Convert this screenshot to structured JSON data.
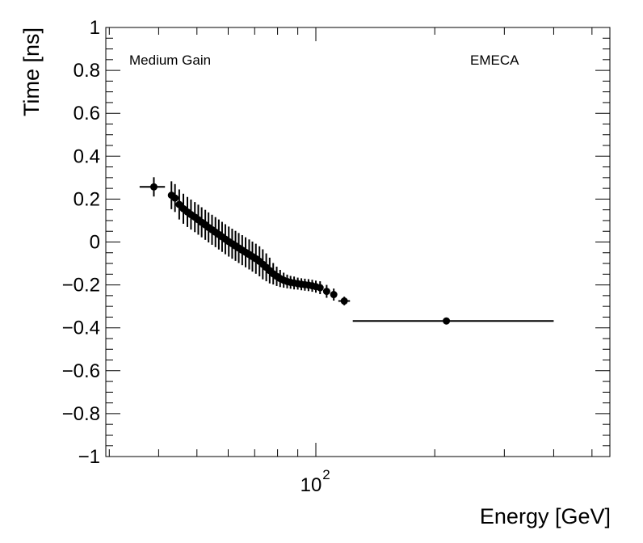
{
  "chart_data": {
    "type": "scatter",
    "xlabel": "Energy [GeV]",
    "ylabel": "Time [ns]",
    "x_scale": "log",
    "xlim": [
      29.4,
      555
    ],
    "ylim": [
      -1,
      1
    ],
    "grid": false,
    "legend": "none",
    "x_tick_labels": [
      {
        "value": 100,
        "base": "10",
        "exp": "2"
      }
    ],
    "y_tick_labels": [
      "−1",
      "−0.8",
      "−0.6",
      "−0.4",
      "−0.2",
      "0",
      "0.2",
      "0.4",
      "0.6",
      "0.8",
      "1"
    ],
    "y_tick_values": [
      -1,
      -0.8,
      -0.6,
      -0.4,
      -0.2,
      0,
      0.2,
      0.4,
      0.6,
      0.8,
      1
    ],
    "annotations": {
      "left": "Medium Gain",
      "right": "EMECA"
    },
    "points": [
      {
        "x": 38.9,
        "y": 0.257,
        "xlo": 35.8,
        "xhi": 41.5,
        "yerr": 0.045
      },
      {
        "x": 43.1,
        "y": 0.218,
        "yerr": 0.065
      },
      {
        "x": 44.0,
        "y": 0.205,
        "yerr": 0.065
      },
      {
        "x": 45.1,
        "y": 0.175,
        "yerr": 0.07
      },
      {
        "x": 46.2,
        "y": 0.155,
        "yerr": 0.07
      },
      {
        "x": 47.3,
        "y": 0.14,
        "yerr": 0.07
      },
      {
        "x": 48.3,
        "y": 0.128,
        "yerr": 0.07
      },
      {
        "x": 49.4,
        "y": 0.116,
        "yerr": 0.07
      },
      {
        "x": 50.4,
        "y": 0.104,
        "yerr": 0.07
      },
      {
        "x": 51.4,
        "y": 0.092,
        "yerr": 0.07
      },
      {
        "x": 52.5,
        "y": 0.08,
        "yerr": 0.07
      },
      {
        "x": 53.5,
        "y": 0.068,
        "yerr": 0.07
      },
      {
        "x": 54.6,
        "y": 0.057,
        "yerr": 0.07
      },
      {
        "x": 55.7,
        "y": 0.046,
        "yerr": 0.07
      },
      {
        "x": 56.8,
        "y": 0.035,
        "yerr": 0.07
      },
      {
        "x": 57.9,
        "y": 0.024,
        "yerr": 0.07
      },
      {
        "x": 59.0,
        "y": 0.013,
        "yerr": 0.07
      },
      {
        "x": 60.2,
        "y": 0.002,
        "yerr": 0.07
      },
      {
        "x": 61.4,
        "y": -0.008,
        "yerr": 0.07
      },
      {
        "x": 62.6,
        "y": -0.018,
        "yerr": 0.07
      },
      {
        "x": 63.8,
        "y": -0.028,
        "yerr": 0.07
      },
      {
        "x": 65.1,
        "y": -0.038,
        "yerr": 0.07
      },
      {
        "x": 66.4,
        "y": -0.048,
        "yerr": 0.07
      },
      {
        "x": 67.8,
        "y": -0.058,
        "yerr": 0.07
      },
      {
        "x": 69.1,
        "y": -0.068,
        "yerr": 0.07
      },
      {
        "x": 70.5,
        "y": -0.078,
        "yerr": 0.07
      },
      {
        "x": 72.0,
        "y": -0.09,
        "yerr": 0.07
      },
      {
        "x": 73.4,
        "y": -0.104,
        "yerr": 0.07
      },
      {
        "x": 74.9,
        "y": -0.118,
        "yerr": 0.065
      },
      {
        "x": 76.4,
        "y": -0.133,
        "yerr": 0.06
      },
      {
        "x": 78.0,
        "y": -0.148,
        "yerr": 0.05
      },
      {
        "x": 79.6,
        "y": -0.16,
        "yerr": 0.045
      },
      {
        "x": 81.2,
        "y": -0.17,
        "yerr": 0.04
      },
      {
        "x": 82.9,
        "y": -0.178,
        "yerr": 0.035
      },
      {
        "x": 84.6,
        "y": -0.184,
        "yerr": 0.032
      },
      {
        "x": 86.3,
        "y": -0.188,
        "yerr": 0.03
      },
      {
        "x": 88.1,
        "y": -0.191,
        "yerr": 0.03
      },
      {
        "x": 90.0,
        "y": -0.194,
        "yerr": 0.028
      },
      {
        "x": 91.9,
        "y": -0.197,
        "yerr": 0.028
      },
      {
        "x": 93.8,
        "y": -0.199,
        "yerr": 0.028
      },
      {
        "x": 95.8,
        "y": -0.201,
        "yerr": 0.028
      },
      {
        "x": 97.9,
        "y": -0.204,
        "yerr": 0.028
      },
      {
        "x": 100.0,
        "y": -0.208,
        "yerr": 0.028
      },
      {
        "x": 102.5,
        "y": -0.213,
        "yerr": 0.03
      },
      {
        "x": 106.5,
        "y": -0.23,
        "yerr": 0.03
      },
      {
        "x": 111.0,
        "y": -0.245,
        "yerr": 0.028
      },
      {
        "x": 118.0,
        "y": -0.275,
        "xlo": 114.0,
        "xhi": 122.0,
        "yerr": 0.02
      },
      {
        "x": 214.0,
        "y": -0.368,
        "xlo": 124.0,
        "xhi": 400.0,
        "yerr": 0.008
      }
    ]
  }
}
